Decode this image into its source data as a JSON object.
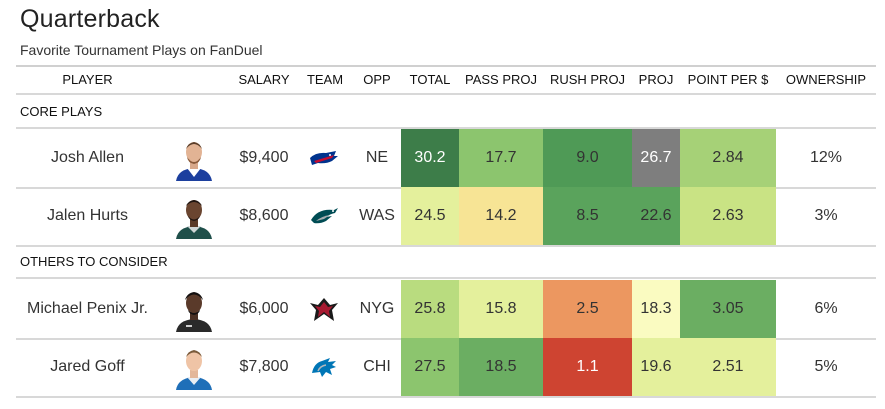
{
  "page": {
    "title": "Quarterback",
    "subtitle": "Favorite Tournament Plays on FanDuel"
  },
  "columns": {
    "player": "PLAYER",
    "salary": "SALARY",
    "team": "TEAM",
    "opp": "OPP",
    "total": "TOTAL",
    "pass_proj": "PASS PROJ",
    "rush_proj": "RUSH PROJ",
    "proj": "PROJ",
    "ppd": "POINT PER $",
    "ownership": "OWNERSHIP"
  },
  "sections": {
    "core": "CORE PLAYS",
    "others": "OTHERS TO CONSIDER"
  },
  "colors": {
    "dark_green": "#3a7a45",
    "mid_green": "#5aa35c",
    "light_green": "#8cc56e",
    "pale_green": "#c9e384",
    "yellow_green": "#e4f09c",
    "pale_yellow": "#fafbc1",
    "yellow": "#f7e495",
    "orange": "#ec9760",
    "red": "#ce4431",
    "gray": "#7e7e7e"
  },
  "rows": [
    {
      "player": "Josh Allen",
      "salary": "$9,400",
      "team": "bills-logo",
      "opp": "NE",
      "total": "30.2",
      "pass_proj": "17.7",
      "rush_proj": "9.0",
      "proj": "26.7",
      "ppd": "2.84",
      "ownership": "12%",
      "total_color": "#3d7d49",
      "pass_color": "#8cc56e",
      "rush_color": "#4f9a56",
      "proj_color": "#7e7e7e",
      "ppd_color": "#a6d177"
    },
    {
      "player": "Jalen Hurts",
      "salary": "$8,600",
      "team": "eagles-logo",
      "opp": "WAS",
      "total": "24.5",
      "pass_proj": "14.2",
      "rush_proj": "8.5",
      "proj": "22.6",
      "ppd": "2.63",
      "ownership": "3%",
      "total_color": "#e4f09c",
      "pass_color": "#f7e495",
      "rush_color": "#5aa35c",
      "proj_color": "#5aa35c",
      "ppd_color": "#c9e384"
    },
    {
      "player": "Michael Penix Jr.",
      "salary": "$6,000",
      "team": "falcons-logo",
      "opp": "NYG",
      "total": "25.8",
      "pass_proj": "15.8",
      "rush_proj": "2.5",
      "proj": "18.3",
      "ppd": "3.05",
      "ownership": "6%",
      "total_color": "#b9dc7f",
      "pass_color": "#e4f09c",
      "rush_color": "#ec9760",
      "proj_color": "#fafbc1",
      "ppd_color": "#6bae62"
    },
    {
      "player": "Jared Goff",
      "salary": "$7,800",
      "team": "lions-logo",
      "opp": "CHI",
      "total": "27.5",
      "pass_proj": "18.5",
      "rush_proj": "1.1",
      "proj": "19.6",
      "ppd": "2.51",
      "ownership": "5%",
      "total_color": "#8cc56e",
      "pass_color": "#6bae62",
      "rush_color": "#ce4431",
      "proj_color": "#e4f09c",
      "ppd_color": "#e4f09c"
    }
  ]
}
